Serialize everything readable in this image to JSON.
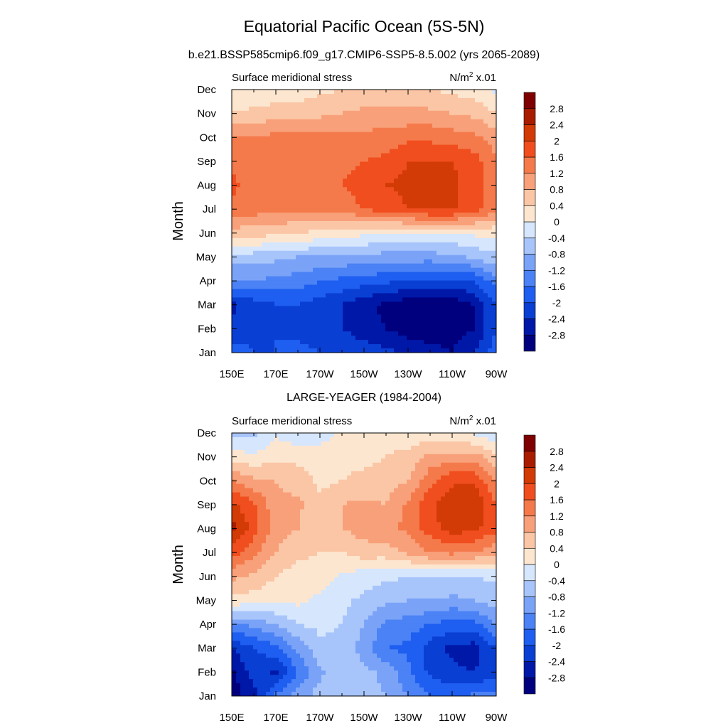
{
  "figure": {
    "title": "Equatorial Pacific Ocean (5S-5N)",
    "subtitle": "b.e21.BSSP585cmip6.f09_g17.CMIP6-SSP5-8.5.002 (yrs 2065-2089)"
  },
  "colorbar": {
    "levels": [
      -2.8,
      -2.4,
      -2,
      -1.6,
      -1.2,
      -0.8,
      -0.4,
      0,
      0.4,
      0.8,
      1.2,
      1.6,
      2,
      2.4,
      2.8
    ],
    "labels": [
      "-2.8",
      "-2.4",
      "-2",
      "-1.6",
      "-1.2",
      "-0.8",
      "-0.4",
      "0",
      "0.4",
      "0.8",
      "1.2",
      "1.6",
      "2",
      "2.4",
      "2.8"
    ],
    "colors": [
      "#00007f",
      "#0018a8",
      "#0a3fd4",
      "#1e5ef0",
      "#4b82f5",
      "#7aa3f8",
      "#a8c5fb",
      "#d6e6fd",
      "#fde6d0",
      "#fbc6a5",
      "#f8a07a",
      "#f57a4b",
      "#f04e1e",
      "#d23a06",
      "#aa1c00",
      "#7f0000"
    ]
  },
  "chart_data": [
    {
      "type": "heatmap",
      "title": "",
      "panel_title": "",
      "left_label": "Surface meridional stress",
      "units_label": "N/m",
      "units_sup": "2",
      "units_suffix": " x.01",
      "xlabel": "",
      "ylabel": "Month",
      "x_ticks": [
        "150E",
        "170E",
        "170W",
        "150W",
        "130W",
        "110W",
        "90W"
      ],
      "y_ticks": [
        "Jan",
        "Feb",
        "Mar",
        "Apr",
        "May",
        "Jun",
        "Jul",
        "Aug",
        "Sep",
        "Oct",
        "Nov",
        "Dec"
      ],
      "x_values": [
        150,
        160,
        170,
        180,
        190,
        200,
        210,
        220,
        230,
        240,
        250,
        260,
        270
      ],
      "values": [
        [
          -1.8,
          -2.0,
          -2.0,
          -1.9,
          -2.0,
          -2.1,
          -2.2,
          -2.3,
          -2.5,
          -2.6,
          -2.8,
          -2.4,
          -1.8
        ],
        [
          -2.3,
          -2.1,
          -2.0,
          -2.1,
          -2.2,
          -2.4,
          -2.6,
          -2.8,
          -3.0,
          -3.1,
          -3.0,
          -2.8,
          -2.0
        ],
        [
          -2.5,
          -2.2,
          -2.0,
          -2.0,
          -2.2,
          -2.4,
          -2.7,
          -2.9,
          -3.1,
          -3.2,
          -3.1,
          -2.8,
          -2.0
        ],
        [
          -1.2,
          -1.2,
          -1.3,
          -1.4,
          -1.6,
          -1.7,
          -1.8,
          -1.9,
          -2.0,
          -2.1,
          -2.1,
          -2.0,
          -1.4
        ],
        [
          -0.6,
          -0.6,
          -0.7,
          -0.8,
          -0.8,
          -0.9,
          -0.9,
          -1.0,
          -1.0,
          -1.0,
          -0.9,
          -0.7,
          -0.5
        ],
        [
          0.6,
          0.6,
          0.5,
          0.4,
          0.3,
          0.2,
          0.1,
          0.0,
          0.0,
          0.0,
          0.0,
          0.1,
          0.1
        ],
        [
          1.5,
          1.4,
          1.3,
          1.3,
          1.3,
          1.4,
          1.6,
          1.8,
          2.0,
          2.1,
          2.1,
          1.8,
          1.3
        ],
        [
          1.7,
          1.4,
          1.4,
          1.4,
          1.4,
          1.6,
          1.8,
          2.0,
          2.1,
          2.1,
          2.1,
          1.8,
          1.3
        ],
        [
          1.5,
          1.4,
          1.4,
          1.4,
          1.4,
          1.5,
          1.6,
          1.7,
          2.0,
          2.0,
          2.0,
          1.8,
          1.2
        ],
        [
          1.2,
          1.3,
          1.3,
          1.3,
          1.3,
          1.3,
          1.3,
          1.4,
          1.5,
          1.5,
          1.4,
          1.3,
          1.0
        ],
        [
          0.4,
          0.5,
          0.6,
          0.6,
          0.7,
          0.8,
          0.9,
          0.9,
          0.9,
          0.9,
          0.8,
          0.7,
          0.4
        ],
        [
          0.0,
          0.1,
          0.1,
          0.2,
          0.3,
          0.4,
          0.5,
          0.5,
          0.5,
          0.4,
          0.3,
          0.2,
          -0.1
        ]
      ]
    },
    {
      "type": "heatmap",
      "title": "",
      "panel_title": "LARGE-YEAGER (1984-2004)",
      "left_label": "Surface meridional stress",
      "units_label": "N/m",
      "units_sup": "2",
      "units_suffix": " x.01",
      "xlabel": "",
      "ylabel": "Month",
      "x_ticks": [
        "150E",
        "170E",
        "170W",
        "150W",
        "130W",
        "110W",
        "90W"
      ],
      "y_ticks": [
        "Jan",
        "Feb",
        "Mar",
        "Apr",
        "May",
        "Jun",
        "Jul",
        "Aug",
        "Sep",
        "Oct",
        "Nov",
        "Dec"
      ],
      "x_values": [
        150,
        160,
        170,
        180,
        190,
        200,
        210,
        220,
        230,
        240,
        250,
        260,
        270
      ],
      "values": [
        [
          -3.0,
          -2.6,
          -1.5,
          -1.0,
          -0.6,
          -0.5,
          -0.7,
          -0.8,
          -1.2,
          -1.6,
          -1.7,
          -1.5,
          -1.4
        ],
        [
          -2.9,
          -2.2,
          -2.5,
          -1.6,
          -0.9,
          -0.5,
          -0.7,
          -0.9,
          -1.5,
          -2.1,
          -2.3,
          -2.4,
          -2.2
        ],
        [
          -2.4,
          -2.0,
          -1.7,
          -1.1,
          -0.5,
          -0.5,
          -1.0,
          -1.6,
          -1.7,
          -2.2,
          -2.5,
          -2.6,
          -2.0
        ],
        [
          -1.2,
          -1.1,
          -0.8,
          -0.4,
          -0.3,
          -0.4,
          -0.8,
          -1.3,
          -1.4,
          -1.6,
          -1.8,
          -1.7,
          -1.2
        ],
        [
          0.3,
          0.2,
          0.1,
          0.1,
          -0.1,
          -0.3,
          -0.5,
          -0.7,
          -0.8,
          -0.8,
          -0.9,
          -0.8,
          -0.6
        ],
        [
          0.9,
          0.7,
          0.4,
          0.2,
          0.2,
          -0.1,
          -0.2,
          -0.3,
          -0.4,
          -0.4,
          -0.4,
          -0.4,
          -0.3
        ],
        [
          1.8,
          1.3,
          0.8,
          0.5,
          0.4,
          0.4,
          0.6,
          0.6,
          0.9,
          1.2,
          1.3,
          1.2,
          0.9
        ],
        [
          2.6,
          1.8,
          1.0,
          0.8,
          0.5,
          0.8,
          1.0,
          1.1,
          1.3,
          1.8,
          2.2,
          2.1,
          1.7
        ],
        [
          2.1,
          1.7,
          0.9,
          0.9,
          0.5,
          0.8,
          0.9,
          0.8,
          1.3,
          1.9,
          2.4,
          2.4,
          1.6
        ],
        [
          1.2,
          0.9,
          0.8,
          0.6,
          0.3,
          0.4,
          0.5,
          0.6,
          0.8,
          1.5,
          1.9,
          1.9,
          1.2
        ],
        [
          0.2,
          0.1,
          0.3,
          0.3,
          0.2,
          0.3,
          0.3,
          0.4,
          0.5,
          0.9,
          1.0,
          1.0,
          0.5
        ],
        [
          -0.6,
          -0.5,
          -0.1,
          -0.3,
          -0.2,
          0.1,
          0.2,
          0.3,
          0.2,
          0.1,
          0.0,
          -0.1,
          -0.4
        ]
      ]
    }
  ]
}
